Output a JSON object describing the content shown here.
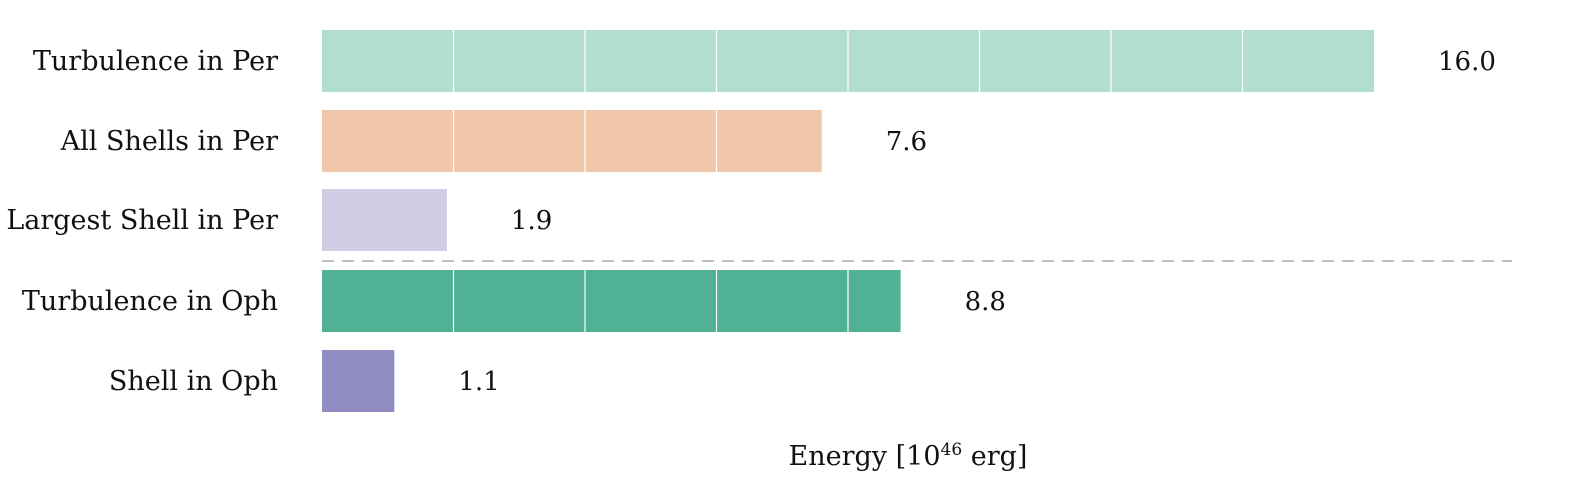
{
  "chart_data": {
    "type": "bar",
    "orientation": "horizontal",
    "categories": [
      "Turbulence in Per",
      "All Shells in Per",
      "Largest Shell in Per",
      "Turbulence in Oph",
      "Shell in Oph"
    ],
    "values": [
      16.0,
      7.6,
      1.9,
      8.8,
      1.1
    ],
    "value_labels": [
      "16.0",
      "7.6",
      "1.9",
      "8.8",
      "1.1"
    ],
    "colors": [
      "#b2ded1",
      "#f1c7a9",
      "#cfcde4",
      "#51b194",
      "#918dc3"
    ],
    "xlabel": {
      "prefix": "Energy [10",
      "superscript": "46",
      "suffix": " erg]"
    },
    "xlim": [
      0,
      18
    ],
    "grid": "vertical white lines every 2 units inside bars",
    "separator": "dashed line between Largest Shell in Per and Turbulence in Oph"
  }
}
